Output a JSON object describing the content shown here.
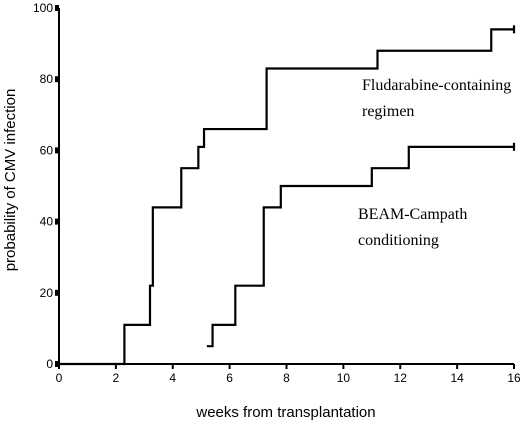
{
  "chart_data": {
    "type": "line",
    "step": true,
    "xlabel": "weeks from transplantation",
    "ylabel": "probability of CMV infection",
    "xlim": [
      0,
      16
    ],
    "ylim": [
      0,
      100
    ],
    "xticks": [
      0,
      2,
      4,
      6,
      8,
      10,
      12,
      14,
      16
    ],
    "yticks": [
      0,
      20,
      40,
      60,
      80,
      100
    ],
    "grid": false,
    "series": [
      {
        "name": "Fludarabine-containing regimen",
        "name_lines": [
          "Fludarabine-containing",
          "regimen"
        ],
        "x": [
          0,
          2.3,
          3.2,
          3.3,
          4.3,
          4.9,
          5.1,
          7.3,
          11.2,
          15.2,
          16
        ],
        "y": [
          0,
          11,
          22,
          44,
          55,
          61,
          66,
          83,
          88,
          94,
          94
        ]
      },
      {
        "name": "BEAM-Campath conditioning",
        "name_lines": [
          "BEAM-Campath",
          "conditioning"
        ],
        "x": [
          5.2,
          5.4,
          6.2,
          7.2,
          7.8,
          11,
          12.3,
          16
        ],
        "y": [
          5,
          11,
          22,
          44,
          50,
          55,
          61,
          61
        ]
      }
    ]
  }
}
